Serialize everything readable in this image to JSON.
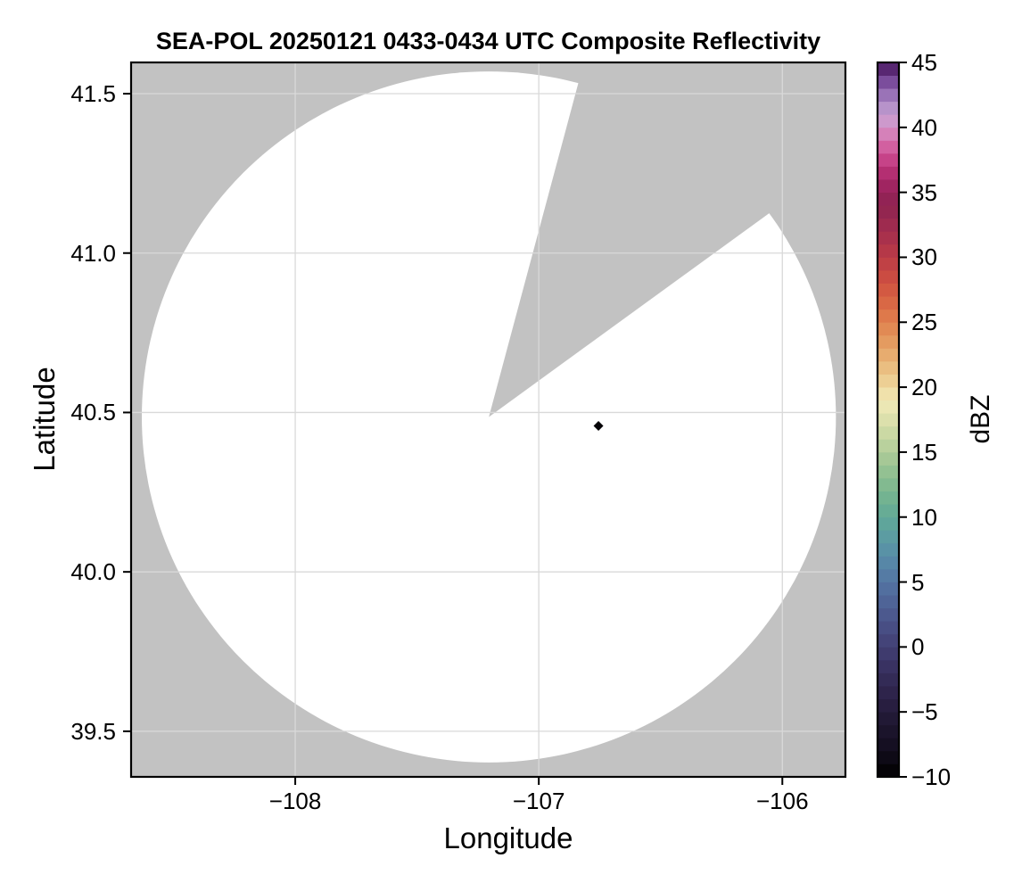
{
  "title": "SEA-POL 20250121 0433-0434 UTC Composite Reflectivity",
  "colors": {
    "figure_bg": "#ffffff",
    "nodata_gray": "#c2c2c2",
    "coverage_white": "#ffffff",
    "gridline": "#d9d9d9",
    "spine": "#000000",
    "tick": "#000000"
  },
  "chart_data": {
    "type": "heatmap",
    "subtype": "radar-composite-reflectivity-ppi",
    "title": "SEA-POL 20250121 0433-0434 UTC Composite Reflectivity",
    "xlabel": "Longitude",
    "ylabel": "Latitude",
    "xlim": [
      -108.674,
      -105.741
    ],
    "ylim": [
      39.357,
      41.598
    ],
    "grid": true,
    "x_ticks": [
      {
        "v": -108,
        "label": "−108"
      },
      {
        "v": -107,
        "label": "−107"
      },
      {
        "v": -106,
        "label": "−106"
      }
    ],
    "y_ticks": [
      {
        "v": 41.5,
        "label": "41.5"
      },
      {
        "v": 41.0,
        "label": "41.0"
      },
      {
        "v": 40.5,
        "label": "40.5"
      },
      {
        "v": 40.0,
        "label": "40.0"
      },
      {
        "v": 39.5,
        "label": "39.5"
      }
    ],
    "radar": {
      "name": "SEA-POL",
      "center_lon": -107.205,
      "center_lat": 40.486,
      "coverage_radius_deg_lon": 1.425,
      "blocked_sector_azimuth_deg": [
        15,
        54
      ]
    },
    "points": [
      {
        "lon": -106.755,
        "lat": 40.458,
        "value_dbz": -9.5,
        "marker": "diamond"
      }
    ],
    "colorbar": {
      "label": "dBZ",
      "vmin": -10,
      "vmax": 45,
      "segment_step": 1,
      "ticks": [
        {
          "v": 45,
          "label": "45"
        },
        {
          "v": 40,
          "label": "40"
        },
        {
          "v": 35,
          "label": "35"
        },
        {
          "v": 30,
          "label": "30"
        },
        {
          "v": 25,
          "label": "25"
        },
        {
          "v": 20,
          "label": "20"
        },
        {
          "v": 15,
          "label": "15"
        },
        {
          "v": 10,
          "label": "10"
        },
        {
          "v": 5,
          "label": "5"
        },
        {
          "v": 0,
          "label": "0"
        },
        {
          "v": -5,
          "label": "−5"
        },
        {
          "v": -10,
          "label": "−10"
        }
      ],
      "colormap_stops": [
        [
          -10,
          "#000000"
        ],
        [
          -8,
          "#120d1d"
        ],
        [
          -6,
          "#1e1630"
        ],
        [
          -4,
          "#2b2145"
        ],
        [
          -2,
          "#362e5c"
        ],
        [
          0,
          "#423f74"
        ],
        [
          2,
          "#4a5389"
        ],
        [
          4,
          "#50699c"
        ],
        [
          6,
          "#5681a7"
        ],
        [
          8,
          "#5a97a5"
        ],
        [
          10,
          "#61a997"
        ],
        [
          12,
          "#79b68f"
        ],
        [
          14,
          "#9cc493"
        ],
        [
          16,
          "#c2d5a0"
        ],
        [
          18,
          "#e4e3b0"
        ],
        [
          19,
          "#f1eab8"
        ],
        [
          20,
          "#eed89e"
        ],
        [
          22,
          "#e8b577"
        ],
        [
          24,
          "#e29258"
        ],
        [
          26,
          "#dc7047"
        ],
        [
          28,
          "#d05140"
        ],
        [
          30,
          "#bb3b46"
        ],
        [
          32,
          "#a32d4e"
        ],
        [
          34,
          "#8e2450"
        ],
        [
          35,
          "#95215a"
        ],
        [
          36,
          "#aa2868"
        ],
        [
          37,
          "#be367c"
        ],
        [
          38,
          "#cd5094"
        ],
        [
          39,
          "#d76fac"
        ],
        [
          40,
          "#d392c6"
        ],
        [
          41,
          "#c6a0d1"
        ],
        [
          42,
          "#a886c3"
        ],
        [
          43,
          "#8b60ab"
        ],
        [
          44,
          "#6b3a8c"
        ],
        [
          45,
          "#451458"
        ]
      ]
    }
  }
}
